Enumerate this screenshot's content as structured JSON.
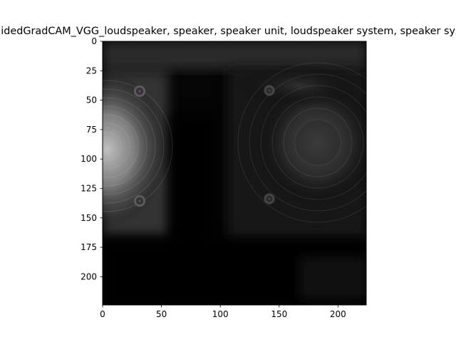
{
  "figure": {
    "title": "GuidedGradCAM_VGG_loudspeaker, speaker, speaker unit, loudspeaker system, speaker system"
  },
  "chart_data": {
    "type": "heatmap",
    "title": "GuidedGradCAM_VGG_loudspeaker, speaker, speaker unit, loudspeaker system, speaker system",
    "xlabel": "",
    "ylabel": "",
    "xlim": [
      0,
      224
    ],
    "ylim": [
      224,
      0
    ],
    "x_ticks": [
      0,
      50,
      100,
      150,
      200
    ],
    "y_ticks": [
      0,
      25,
      50,
      75,
      100,
      125,
      150,
      175,
      200
    ],
    "grid": false,
    "colormap": "grayscale",
    "image_content": "grayscale saliency overlay of a loudspeaker: bright lit woofer on the left, faint woofer on the right, dark background"
  }
}
